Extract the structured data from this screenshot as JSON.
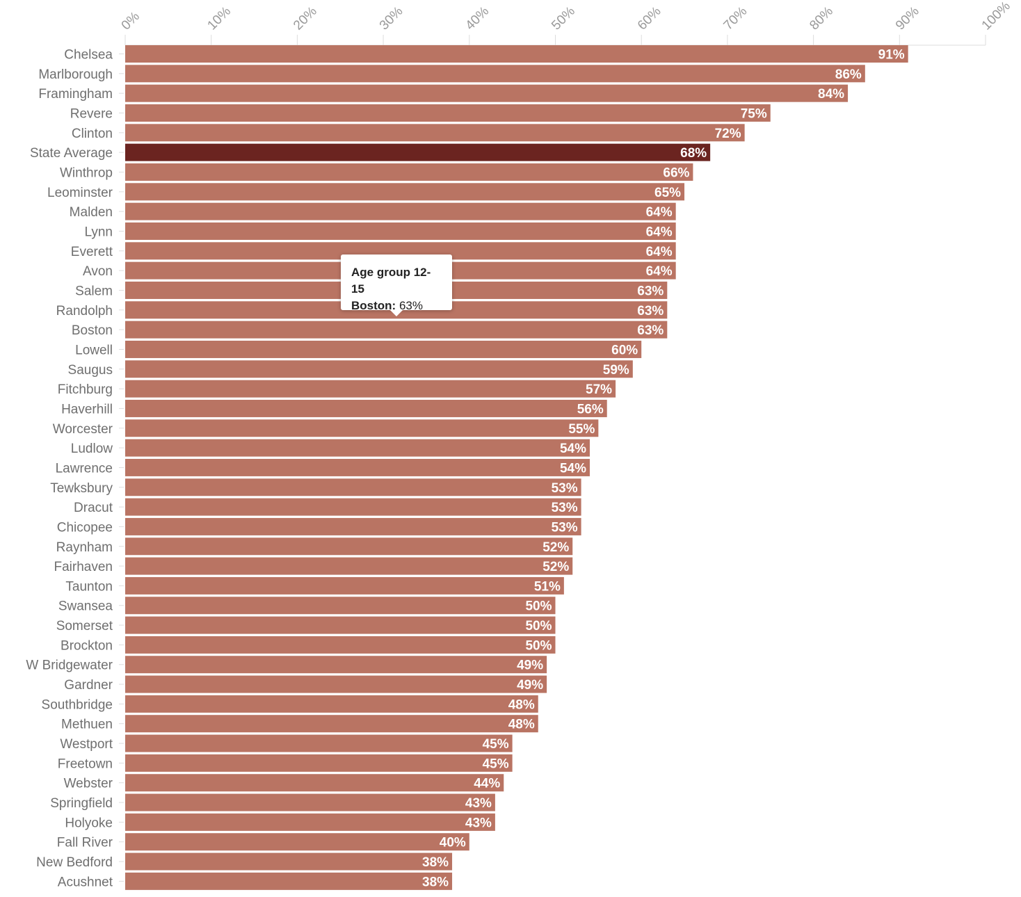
{
  "chart_data": {
    "type": "bar",
    "orientation": "horizontal",
    "title": "",
    "xlabel": "",
    "ylabel": "",
    "xlim": [
      0,
      100
    ],
    "tick_labels": [
      "0%",
      "10%",
      "20%",
      "30%",
      "40%",
      "50%",
      "60%",
      "70%",
      "80%",
      "90%",
      "100%"
    ],
    "tick_values": [
      0,
      10,
      20,
      30,
      40,
      50,
      60,
      70,
      80,
      90,
      100
    ],
    "grid": false,
    "legend": "none",
    "bar_color": "#b97463",
    "highlight_color": "#6b2420",
    "highlight_category": "State Average",
    "categories": [
      "Chelsea",
      "Marlborough",
      "Framingham",
      "Revere",
      "Clinton",
      "State Average",
      "Winthrop",
      "Leominster",
      "Malden",
      "Lynn",
      "Everett",
      "Avon",
      "Salem",
      "Randolph",
      "Boston",
      "Lowell",
      "Saugus",
      "Fitchburg",
      "Haverhill",
      "Worcester",
      "Ludlow",
      "Lawrence",
      "Tewksbury",
      "Dracut",
      "Chicopee",
      "Raynham",
      "Fairhaven",
      "Taunton",
      "Swansea",
      "Somerset",
      "Brockton",
      "W Bridgewater",
      "Gardner",
      "Southbridge",
      "Methuen",
      "Westport",
      "Freetown",
      "Webster",
      "Springfield",
      "Holyoke",
      "Fall River",
      "New Bedford",
      "Acushnet"
    ],
    "values": [
      91,
      86,
      84,
      75,
      72,
      68,
      66,
      65,
      64,
      64,
      64,
      64,
      63,
      63,
      63,
      60,
      59,
      57,
      56,
      55,
      54,
      54,
      53,
      53,
      53,
      52,
      52,
      51,
      50,
      50,
      50,
      49,
      49,
      48,
      48,
      45,
      45,
      44,
      43,
      43,
      40,
      38,
      38
    ],
    "value_labels": [
      "91%",
      "86%",
      "84%",
      "75%",
      "72%",
      "68%",
      "66%",
      "65%",
      "64%",
      "64%",
      "64%",
      "64%",
      "63%",
      "63%",
      "63%",
      "60%",
      "59%",
      "57%",
      "56%",
      "55%",
      "54%",
      "54%",
      "53%",
      "53%",
      "53%",
      "52%",
      "52%",
      "51%",
      "50%",
      "50%",
      "50%",
      "49%",
      "49%",
      "48%",
      "48%",
      "45%",
      "45%",
      "44%",
      "43%",
      "43%",
      "40%",
      "38%",
      "38%"
    ]
  },
  "tooltip": {
    "title": "Age group 12-15",
    "key": "Boston:",
    "value": "63%"
  }
}
